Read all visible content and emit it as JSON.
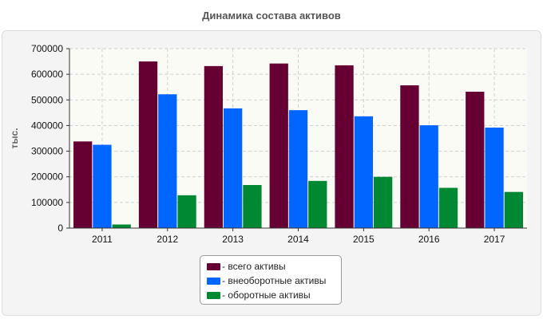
{
  "chart_data": {
    "type": "bar",
    "title": "Динамика состава активов",
    "xlabel": "",
    "ylabel": "тыс.",
    "ylim": [
      0,
      700000
    ],
    "yticks": [
      0,
      100000,
      200000,
      300000,
      400000,
      500000,
      600000,
      700000
    ],
    "grid": true,
    "legend_position": "bottom",
    "categories": [
      "2011",
      "2012",
      "2013",
      "2014",
      "2015",
      "2016",
      "2017"
    ],
    "series": [
      {
        "name": "- всего активы",
        "color": "#660033",
        "values": [
          338000,
          650000,
          632000,
          642000,
          635000,
          557000,
          532000
        ]
      },
      {
        "name": "- внеоборотные активы",
        "color": "#0066ff",
        "values": [
          325000,
          522000,
          467000,
          460000,
          436000,
          401000,
          392000
        ]
      },
      {
        "name": "- оборотные активы",
        "color": "#008833",
        "values": [
          14000,
          128000,
          168000,
          184000,
          200000,
          157000,
          141000
        ]
      }
    ]
  }
}
